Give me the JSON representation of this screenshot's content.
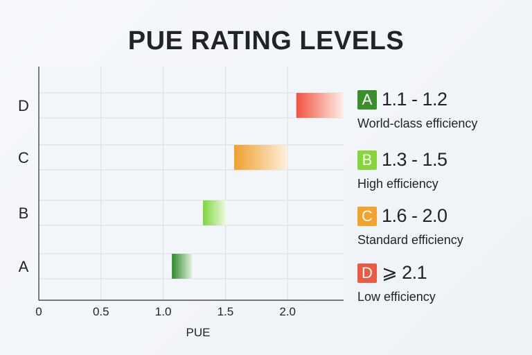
{
  "title": "PUE RATING LEVELS",
  "chart_data": {
    "type": "bar",
    "title": "PUE RATING LEVELS",
    "xlabel": "PUE",
    "ylabel": "",
    "xlim": [
      0,
      2.45
    ],
    "x_ticks": [
      "0",
      "0.5",
      "1.0",
      "1.5",
      "2.0"
    ],
    "x_tick_values": [
      0,
      0.5,
      1.0,
      1.5,
      2.0
    ],
    "categories": [
      "A",
      "B",
      "C",
      "D"
    ],
    "ranges": [
      {
        "category": "A",
        "start": 1.07,
        "end": 1.23,
        "color_start": "#2e8a2a",
        "color_end": "#dff0da"
      },
      {
        "category": "B",
        "start": 1.32,
        "end": 1.51,
        "color_start": "#7ed63a",
        "color_end": "#f0fbe6"
      },
      {
        "category": "C",
        "start": 1.57,
        "end": 2.0,
        "color_start": "#f0a02e",
        "color_end": "#fdf0dd"
      },
      {
        "category": "D",
        "start": 2.07,
        "end": 2.45,
        "color_start": "#ef5340",
        "color_end": "#fdf0e8"
      }
    ],
    "grid": true,
    "legend_position": "right"
  },
  "legend": [
    {
      "letter": "A",
      "range": "1.1 - 1.2",
      "description": "World-class efficiency",
      "color": "#3a8f2c"
    },
    {
      "letter": "B",
      "range": "1.3 - 1.5",
      "description": "High efficiency",
      "color": "#86d63a"
    },
    {
      "letter": "C",
      "range": "1.6 - 2.0",
      "description": "Standard efficiency",
      "color": "#f3a32b"
    },
    {
      "letter": "D",
      "range": "⩾ 2.1",
      "description": "Low efficiency",
      "color": "#ea5a44"
    }
  ]
}
